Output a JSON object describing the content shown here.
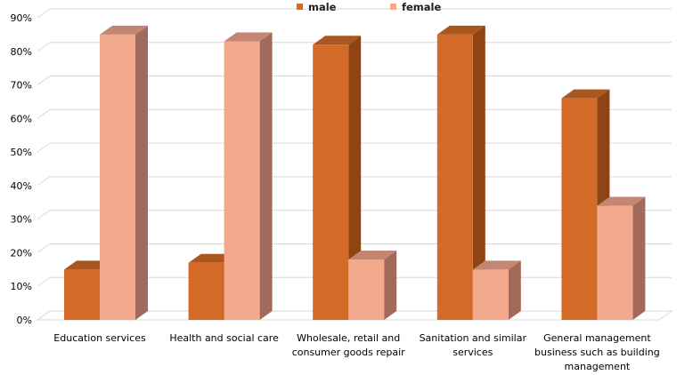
{
  "chart_data": {
    "type": "bar",
    "categories": [
      "Education services",
      "Health and social care",
      "Wholesale, retail and\nconsumer goods repair",
      "Sanitation and similar\nservices",
      "General management\nbusiness such as building\nmanagement"
    ],
    "series": [
      {
        "name": "male",
        "values": [
          15,
          17,
          82,
          85,
          66
        ],
        "color": "#d36a28",
        "side_color": "#8f4414",
        "top_color": "#a9561f"
      },
      {
        "name": "female",
        "values": [
          85,
          83,
          18,
          15,
          34
        ],
        "color": "#f3a98c",
        "side_color": "#a16a5a",
        "top_color": "#c38672"
      }
    ],
    "ylim": [
      0,
      90
    ],
    "yticks": [
      "0%",
      "10%",
      "20%",
      "30%",
      "40%",
      "50%",
      "60%",
      "70%",
      "80%",
      "90%"
    ],
    "ylabel": "",
    "xlabel": "",
    "title": "",
    "grid": true,
    "legend_position": "top-center",
    "three_d": true
  }
}
